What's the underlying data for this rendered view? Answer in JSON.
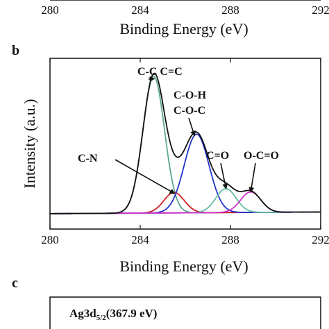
{
  "panels": {
    "a_partial": {
      "tick_labels": [
        "280",
        "284",
        "288",
        "292"
      ],
      "xlabel": "Binding Energy (eV)"
    },
    "b": {
      "letter": "b"
    },
    "c": {
      "letter": "c",
      "label_main": "Ag3d",
      "label_sub": "5/2",
      "label_value": "(367.9 eV)"
    }
  },
  "chart_data": {
    "type": "line",
    "title": "",
    "xlabel": "Binding Energy (eV)",
    "ylabel": "Intensity (a.u.)",
    "xlim": [
      280,
      292
    ],
    "ylim": [
      0,
      1.0
    ],
    "x_ticks": [
      280,
      284,
      288,
      292
    ],
    "background_line": {
      "x": [
        280,
        292
      ],
      "y": [
        0.09,
        0.1
      ],
      "color": "#e040e0"
    },
    "series": [
      {
        "name": "C-C C=C",
        "center": 284.6,
        "amplitude": 0.8,
        "width": 0.48,
        "color": "#5aa88c"
      },
      {
        "name": "C-N",
        "center": 285.5,
        "amplitude": 0.12,
        "width": 0.45,
        "color": "#d02020"
      },
      {
        "name": "C-O-H C-O-C",
        "center": 286.5,
        "amplitude": 0.46,
        "width": 0.55,
        "color": "#2233cc"
      },
      {
        "name": "C=O",
        "center": 287.8,
        "amplitude": 0.14,
        "width": 0.45,
        "color": "#60c0a0"
      },
      {
        "name": "O-C=O",
        "center": 288.9,
        "amplitude": 0.12,
        "width": 0.45,
        "color": "#cc33cc"
      }
    ],
    "envelope_color": "#111111",
    "annotations": [
      {
        "text": "C-C C=C",
        "points_to": [
          284.6,
          0.88
        ]
      },
      {
        "text": "C-O-H",
        "line": 1
      },
      {
        "text": "C-O-C",
        "points_to": [
          286.4,
          0.55
        ],
        "line": 2
      },
      {
        "text": "C-N",
        "points_to": [
          285.5,
          0.21
        ]
      },
      {
        "text": "C=O",
        "points_to": [
          287.8,
          0.24
        ]
      },
      {
        "text": "O-C=O",
        "points_to": [
          288.9,
          0.22
        ]
      }
    ]
  }
}
